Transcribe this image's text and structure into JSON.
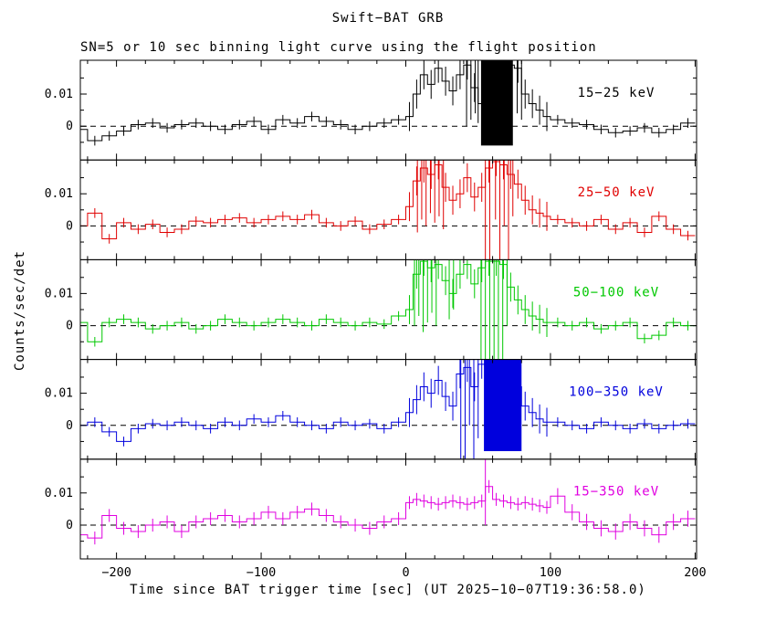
{
  "page": {
    "title": "Swift−BAT GRB",
    "subtitle": "SN=5 or 10 sec binning light curve using the flight position",
    "xlabel": "Time since BAT trigger time [sec] (UT 2025−10−07T19:36:58.0)",
    "ylabel": "Counts/sec/det"
  },
  "chart_data": {
    "type": "line",
    "title": "Swift−BAT GRB",
    "subtitle": "SN=5 or 10 sec binning light curve using the flight position",
    "xlabel": "Time since BAT trigger time [sec] (UT 2025−10−07T19:36:58.0)",
    "ylabel": "Counts/sec/det",
    "style": "step-histogram with error bars, 5 stacked panels, dashed zero line",
    "xlim": [
      -225,
      201
    ],
    "ylim": [
      -0.0105,
      0.0205
    ],
    "x_minor_step": 20,
    "y_minor": [
      -0.005,
      0.005,
      0.015
    ],
    "x_ticks": [
      {
        "v": -200,
        "label": "−200"
      },
      {
        "v": -100,
        "label": "−100"
      },
      {
        "v": 0,
        "label": "0"
      },
      {
        "v": 100,
        "label": "100"
      },
      {
        "v": 200,
        "label": "200"
      }
    ],
    "y_ticks": [
      {
        "v": 0.01,
        "label": "0.01"
      },
      {
        "v": 0,
        "label": "0"
      }
    ],
    "edges": [
      -230,
      -220,
      -210,
      -200,
      -190,
      -180,
      -170,
      -160,
      -150,
      -140,
      -130,
      -120,
      -110,
      -100,
      -90,
      -80,
      -70,
      -60,
      -50,
      -40,
      -30,
      -20,
      -10,
      0,
      5,
      10,
      15,
      20,
      25,
      30,
      35,
      40,
      45,
      50,
      55,
      60,
      65,
      70,
      75,
      80,
      85,
      90,
      95,
      100,
      110,
      120,
      130,
      140,
      150,
      160,
      170,
      180,
      190,
      200
    ],
    "x": [
      -225,
      -215,
      -205,
      -195,
      -185,
      -175,
      -165,
      -155,
      -145,
      -135,
      -125,
      -115,
      -105,
      -95,
      -85,
      -75,
      -65,
      -55,
      -45,
      -35,
      -25,
      -15,
      -5,
      2.5,
      7.5,
      12.5,
      17.5,
      22.5,
      27.5,
      32.5,
      37.5,
      42.5,
      47.5,
      52.5,
      57.5,
      62.5,
      67.5,
      72.5,
      77.5,
      82.5,
      87.5,
      92.5,
      97.5,
      105,
      115,
      125,
      135,
      145,
      155,
      165,
      175,
      185,
      195
    ],
    "series": [
      {
        "name": "15−25 keV",
        "color": "#000000",
        "y": [
          -0.001,
          -0.0045,
          -0.003,
          -0.0015,
          0.0005,
          0.001,
          -0.0005,
          0.0005,
          0.001,
          0,
          -0.001,
          0.0005,
          0.0015,
          -0.001,
          0.002,
          0.001,
          0.003,
          0.0015,
          0.0005,
          -0.001,
          0,
          0.001,
          0.002,
          0.003,
          0.01,
          0.016,
          0.013,
          0.018,
          0.014,
          0.011,
          0.016,
          0.019,
          0.012,
          0.007,
          0.019,
          0.02,
          0.02,
          0.019,
          0.018,
          0.01,
          0.007,
          0.005,
          0.003,
          0.002,
          0.001,
          0.0005,
          -0.001,
          -0.002,
          -0.0015,
          -0.0005,
          -0.002,
          -0.001,
          0.001
        ],
        "e": [
          0.0015,
          0.0015,
          0.0015,
          0.0015,
          0.0015,
          0.0015,
          0.0015,
          0.0015,
          0.0015,
          0.0015,
          0.0015,
          0.0015,
          0.0015,
          0.0015,
          0.0015,
          0.0015,
          0.0015,
          0.0015,
          0.0015,
          0.0015,
          0.0015,
          0.0015,
          0.0015,
          0.0045,
          0.0045,
          0.0045,
          0.0045,
          0.0045,
          0.0045,
          0.0045,
          0.0045,
          0.0045,
          0.0045,
          0.0045,
          0.0045,
          0.0045,
          0.0045,
          0.0045,
          0.0045,
          0.0045,
          0.0045,
          0.0045,
          0.0045,
          0.0015,
          0.0015,
          0.0015,
          0.0015,
          0.0015,
          0.0015,
          0.0015,
          0.0015,
          0.0015,
          0.0015
        ],
        "vlines": [
          [
            42,
            0,
            0.0205
          ],
          [
            45,
            0.002,
            0.0205
          ],
          [
            48,
            0.004,
            0.0205
          ],
          [
            50,
            0.001,
            0.0205
          ],
          [
            77,
            0.004,
            0.0205
          ],
          [
            80,
            0.002,
            0.0205
          ]
        ],
        "bands": [
          [
            52,
            74,
            -0.006,
            0.0205
          ]
        ]
      },
      {
        "name": "25−50 keV",
        "color": "#e00000",
        "y": [
          0,
          0.004,
          -0.004,
          0.001,
          -0.001,
          0.0005,
          -0.002,
          -0.001,
          0.0015,
          0.001,
          0.002,
          0.0025,
          0.001,
          0.002,
          0.003,
          0.002,
          0.0035,
          0.001,
          0,
          0.0015,
          -0.001,
          0.0005,
          0.002,
          0.006,
          0.014,
          0.018,
          0.016,
          0.019,
          0.012,
          0.008,
          0.01,
          0.015,
          0.009,
          0.012,
          0.018,
          0.02,
          0.019,
          0.016,
          0.013,
          0.008,
          0.005,
          0.004,
          0.003,
          0.002,
          0.001,
          0,
          0.002,
          -0.001,
          0.001,
          -0.002,
          0.003,
          -0.001,
          -0.003
        ],
        "e": [
          0.0015,
          0.0015,
          0.0015,
          0.0015,
          0.0015,
          0.0015,
          0.0015,
          0.0015,
          0.0015,
          0.0015,
          0.0015,
          0.0015,
          0.0015,
          0.0015,
          0.0015,
          0.0015,
          0.0015,
          0.0015,
          0.0015,
          0.0015,
          0.0015,
          0.0015,
          0.0015,
          0.0045,
          0.0045,
          0.0045,
          0.0045,
          0.0045,
          0.0045,
          0.0045,
          0.0045,
          0.0045,
          0.0045,
          0.0045,
          0.0045,
          0.0045,
          0.0045,
          0.0045,
          0.0045,
          0.0045,
          0.0045,
          0.0045,
          0.0045,
          0.0015,
          0.0015,
          0.0015,
          0.0015,
          0.0015,
          0.0015,
          0.0015,
          0.0015,
          0.0015,
          0.0015
        ],
        "vlines": [
          [
            8,
            -0.002,
            0.0205
          ],
          [
            11,
            0.002,
            0.0205
          ],
          [
            14,
            0,
            0.0205
          ],
          [
            17,
            0.004,
            0.0205
          ],
          [
            20,
            0.001,
            0.0205
          ],
          [
            23,
            0.003,
            0.0205
          ],
          [
            26,
            -0.001,
            0.0205
          ],
          [
            55,
            -0.0105,
            0.0205
          ],
          [
            58,
            -0.0105,
            0.0205
          ],
          [
            62,
            0.002,
            0.0205
          ],
          [
            65,
            -0.0105,
            0.0205
          ],
          [
            68,
            0,
            0.0205
          ],
          [
            71,
            -0.0105,
            0.0205
          ],
          [
            74,
            0.003,
            0.0205
          ]
        ],
        "bands": []
      },
      {
        "name": "50−100 keV",
        "color": "#00c800",
        "y": [
          0.001,
          -0.005,
          0.001,
          0.002,
          0.001,
          -0.001,
          0,
          0.001,
          -0.001,
          0,
          0.002,
          0.001,
          0,
          0.001,
          0.002,
          0.001,
          0,
          0.002,
          0.001,
          0,
          0.001,
          0.0005,
          0.003,
          0.005,
          0.016,
          0.02,
          0.018,
          0.019,
          0.014,
          0.01,
          0.016,
          0.019,
          0.013,
          0.018,
          0.02,
          0.02,
          0.019,
          0.012,
          0.008,
          0.005,
          0.003,
          0.002,
          0.001,
          0.001,
          0,
          0.001,
          -0.001,
          0,
          0.001,
          -0.004,
          -0.003,
          0.001,
          0
        ],
        "e": [
          0.0015,
          0.0015,
          0.0015,
          0.0015,
          0.0015,
          0.0015,
          0.0015,
          0.0015,
          0.0015,
          0.0015,
          0.0015,
          0.0015,
          0.0015,
          0.0015,
          0.0015,
          0.0015,
          0.0015,
          0.0015,
          0.0015,
          0.0015,
          0.0015,
          0.0015,
          0.0015,
          0.0045,
          0.0045,
          0.0045,
          0.0045,
          0.0045,
          0.0045,
          0.0045,
          0.0045,
          0.0045,
          0.0045,
          0.0045,
          0.0045,
          0.0045,
          0.0045,
          0.0045,
          0.0045,
          0.0045,
          0.0045,
          0.0045,
          0.0045,
          0.0015,
          0.0015,
          0.0015,
          0.0015,
          0.0015,
          0.0015,
          0.0015,
          0.0015,
          0.0015,
          0.0015
        ],
        "vlines": [
          [
            6,
            0,
            0.0205
          ],
          [
            9,
            0.003,
            0.0205
          ],
          [
            12,
            -0.002,
            0.0205
          ],
          [
            15,
            0.001,
            0.0205
          ],
          [
            18,
            0.004,
            0.0205
          ],
          [
            21,
            0,
            0.0205
          ],
          [
            30,
            0.002,
            0.0205
          ],
          [
            33,
            0.005,
            0.0205
          ],
          [
            52,
            -0.0105,
            0.0205
          ],
          [
            55,
            -0.0105,
            0.0205
          ],
          [
            58,
            -0.0105,
            0.0205
          ],
          [
            61,
            -0.0105,
            0.0205
          ],
          [
            64,
            -0.0105,
            0.0205
          ],
          [
            67,
            -0.0105,
            0.0205
          ],
          [
            70,
            0,
            0.0205
          ]
        ],
        "bands": []
      },
      {
        "name": "100−350 keV",
        "color": "#0000dd",
        "y": [
          0,
          0.001,
          -0.002,
          -0.005,
          -0.001,
          0.0005,
          0,
          0.001,
          0,
          -0.001,
          0.001,
          0,
          0.002,
          0.001,
          0.003,
          0.001,
          0,
          -0.001,
          0.001,
          0,
          0.0005,
          -0.001,
          0.001,
          0.004,
          0.008,
          0.012,
          0.01,
          0.014,
          0.009,
          0.006,
          0.016,
          0.018,
          0.012,
          0.019,
          0.02,
          0.02,
          0.019,
          0.018,
          0.012,
          0.006,
          0.004,
          0.002,
          0.001,
          0.001,
          0,
          -0.001,
          0.001,
          0,
          -0.001,
          0.0005,
          -0.001,
          0,
          0.0005
        ],
        "e": [
          0.0015,
          0.0015,
          0.0015,
          0.0015,
          0.0015,
          0.0015,
          0.0015,
          0.0015,
          0.0015,
          0.0015,
          0.0015,
          0.0015,
          0.0015,
          0.0015,
          0.0015,
          0.0015,
          0.0015,
          0.0015,
          0.0015,
          0.0015,
          0.0015,
          0.0015,
          0.0015,
          0.0045,
          0.0045,
          0.0045,
          0.0045,
          0.0045,
          0.0045,
          0.0045,
          0.0045,
          0.0045,
          0.0045,
          0.0045,
          0.0045,
          0.0045,
          0.0045,
          0.0045,
          0.0045,
          0.0045,
          0.0045,
          0.0045,
          0.0045,
          0.0015,
          0.0015,
          0.0015,
          0.0015,
          0.0015,
          0.0015,
          0.0015,
          0.0015,
          0.0015,
          0.0015
        ],
        "vlines": [
          [
            38,
            -0.0105,
            0.0205
          ],
          [
            41,
            -0.0105,
            0.0205
          ],
          [
            44,
            0,
            0.0205
          ],
          [
            47,
            -0.0105,
            0.0205
          ],
          [
            50,
            -0.004,
            0.0205
          ]
        ],
        "bands": [
          [
            54,
            80,
            -0.008,
            0.0205
          ]
        ]
      },
      {
        "name": "15−350 keV",
        "color": "#e000e0",
        "y": [
          -0.003,
          -0.004,
          0.003,
          -0.001,
          -0.002,
          0,
          0.001,
          -0.002,
          0.001,
          0.002,
          0.003,
          0.001,
          0.002,
          0.004,
          0.002,
          0.004,
          0.005,
          0.003,
          0.001,
          0,
          -0.001,
          0.001,
          0.002,
          0.007,
          0.008,
          0.0075,
          0.007,
          0.0065,
          0.007,
          0.0075,
          0.007,
          0.0065,
          0.007,
          0.0075,
          0.012,
          0.008,
          0.0075,
          0.007,
          0.0065,
          0.007,
          0.0065,
          0.006,
          0.0055,
          0.009,
          0.004,
          0.001,
          -0.001,
          -0.002,
          0.001,
          -0.001,
          -0.003,
          0.001,
          0.002
        ],
        "e": [
          0.002,
          0.002,
          0.002,
          0.002,
          0.002,
          0.002,
          0.002,
          0.002,
          0.002,
          0.002,
          0.002,
          0.002,
          0.002,
          0.002,
          0.002,
          0.002,
          0.002,
          0.002,
          0.002,
          0.002,
          0.002,
          0.002,
          0.002,
          0.002,
          0.002,
          0.002,
          0.002,
          0.002,
          0.002,
          0.002,
          0.002,
          0.002,
          0.002,
          0.002,
          0.002,
          0.002,
          0.002,
          0.002,
          0.002,
          0.002,
          0.002,
          0.002,
          0.002,
          0.0025,
          0.0025,
          0.0025,
          0.0025,
          0.0025,
          0.0025,
          0.0025,
          0.0025,
          0.0025,
          0.0025
        ],
        "vlines": [
          [
            55,
            0,
            0.0205
          ]
        ],
        "bands": []
      }
    ]
  }
}
